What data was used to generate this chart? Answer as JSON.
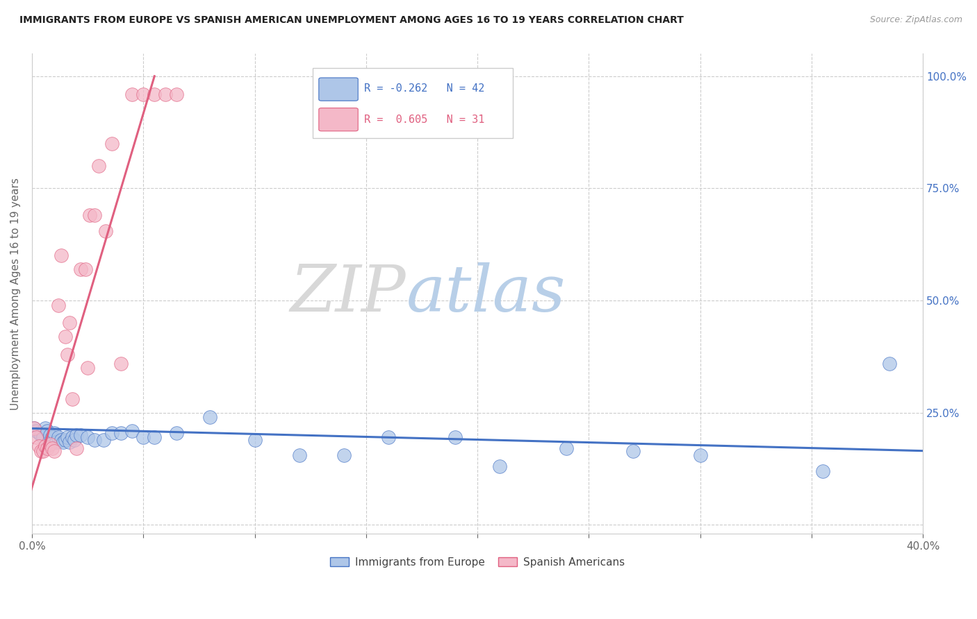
{
  "title": "IMMIGRANTS FROM EUROPE VS SPANISH AMERICAN UNEMPLOYMENT AMONG AGES 16 TO 19 YEARS CORRELATION CHART",
  "source": "Source: ZipAtlas.com",
  "ylabel": "Unemployment Among Ages 16 to 19 years",
  "xlim": [
    0.0,
    0.4
  ],
  "ylim": [
    -0.02,
    1.05
  ],
  "xticks": [
    0.0,
    0.05,
    0.1,
    0.15,
    0.2,
    0.25,
    0.3,
    0.35,
    0.4
  ],
  "yticks": [
    0.0,
    0.25,
    0.5,
    0.75,
    1.0
  ],
  "ytick_labels_right": [
    "",
    "25.0%",
    "50.0%",
    "75.0%",
    "100.0%"
  ],
  "xtick_labels": [
    "0.0%",
    "",
    "",
    "",
    "",
    "",
    "",
    "",
    "40.0%"
  ],
  "legend_R1": "R = -0.262",
  "legend_N1": "N = 42",
  "legend_R2": "R =  0.605",
  "legend_N2": "N = 31",
  "watermark_zip": "ZIP",
  "watermark_atlas": "atlas",
  "blue_color": "#aec6e8",
  "pink_color": "#f4b8c8",
  "blue_line_color": "#4472c4",
  "pink_line_color": "#e06080",
  "blue_scatter_x": [
    0.001,
    0.002,
    0.003,
    0.004,
    0.005,
    0.006,
    0.007,
    0.008,
    0.009,
    0.01,
    0.011,
    0.012,
    0.013,
    0.014,
    0.015,
    0.016,
    0.017,
    0.018,
    0.019,
    0.02,
    0.022,
    0.025,
    0.028,
    0.032,
    0.036,
    0.04,
    0.045,
    0.05,
    0.055,
    0.065,
    0.08,
    0.1,
    0.12,
    0.14,
    0.16,
    0.19,
    0.21,
    0.24,
    0.27,
    0.3,
    0.355,
    0.385
  ],
  "blue_scatter_y": [
    0.215,
    0.21,
    0.205,
    0.2,
    0.195,
    0.215,
    0.21,
    0.2,
    0.195,
    0.205,
    0.185,
    0.195,
    0.19,
    0.185,
    0.19,
    0.195,
    0.185,
    0.195,
    0.19,
    0.2,
    0.2,
    0.195,
    0.19,
    0.19,
    0.205,
    0.205,
    0.21,
    0.195,
    0.195,
    0.205,
    0.24,
    0.19,
    0.155,
    0.155,
    0.195,
    0.195,
    0.13,
    0.17,
    0.165,
    0.155,
    0.12,
    0.36
  ],
  "pink_scatter_x": [
    0.001,
    0.002,
    0.003,
    0.004,
    0.005,
    0.006,
    0.007,
    0.008,
    0.009,
    0.01,
    0.012,
    0.013,
    0.015,
    0.016,
    0.017,
    0.018,
    0.02,
    0.022,
    0.024,
    0.025,
    0.026,
    0.028,
    0.03,
    0.033,
    0.036,
    0.04,
    0.045,
    0.05,
    0.055,
    0.06,
    0.065
  ],
  "pink_scatter_y": [
    0.215,
    0.195,
    0.175,
    0.165,
    0.165,
    0.175,
    0.17,
    0.18,
    0.17,
    0.165,
    0.49,
    0.6,
    0.42,
    0.38,
    0.45,
    0.28,
    0.17,
    0.57,
    0.57,
    0.35,
    0.69,
    0.69,
    0.8,
    0.655,
    0.85,
    0.36,
    0.96,
    0.96,
    0.96,
    0.96,
    0.96
  ],
  "blue_trend_x": [
    0.0,
    0.4
  ],
  "blue_trend_y": [
    0.215,
    0.165
  ],
  "pink_trend_x": [
    -0.002,
    0.055
  ],
  "pink_trend_y": [
    0.05,
    1.0
  ],
  "figsize": [
    14.06,
    8.92
  ],
  "dpi": 100
}
